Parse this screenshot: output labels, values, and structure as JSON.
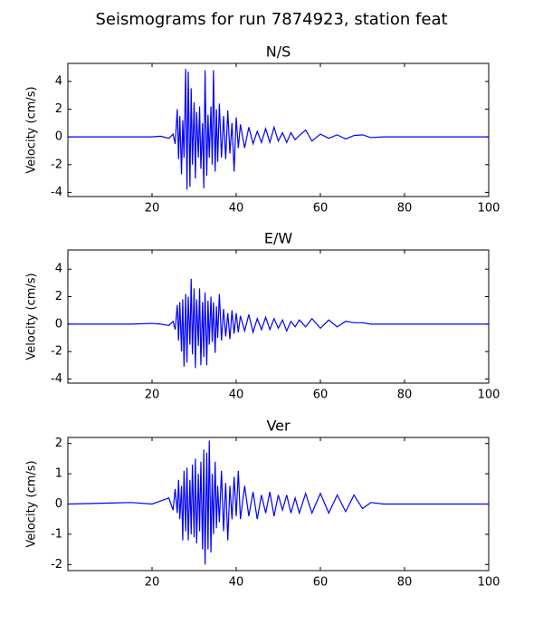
{
  "title": "Seismograms for run 7874923, station feat",
  "chart_data": [
    {
      "type": "line",
      "title": "N/S",
      "ylabel": "Velocity (cm/s)",
      "color": "#0000ff",
      "xlim": [
        0,
        100
      ],
      "xticks": [
        20,
        40,
        60,
        80,
        100
      ],
      "ylim": [
        -4.3,
        5.3
      ],
      "yticks": [
        -4,
        -2,
        0,
        2,
        4
      ],
      "x": [
        0,
        15,
        20,
        22,
        24,
        25,
        25.5,
        26,
        26.3,
        26.6,
        27,
        27.3,
        27.6,
        28,
        28.3,
        28.6,
        29,
        29.3,
        29.6,
        30,
        30.3,
        30.6,
        31,
        31.3,
        31.6,
        32,
        32.3,
        32.6,
        33,
        33.3,
        33.6,
        34,
        34.3,
        34.6,
        35,
        35.3,
        35.6,
        36,
        36.5,
        37,
        37.5,
        38,
        38.5,
        39,
        39.5,
        40,
        40.5,
        41,
        42,
        43,
        44,
        45,
        46,
        47,
        48,
        49,
        50,
        51,
        52,
        53,
        54,
        55,
        56.5,
        58,
        60,
        62,
        64,
        66,
        68,
        70,
        72,
        75,
        100
      ],
      "values": [
        0,
        0,
        0,
        0.05,
        -0.1,
        0.2,
        -0.5,
        2.0,
        -1.6,
        1.5,
        -2.7,
        1.2,
        -1.5,
        4.9,
        -3.8,
        4.7,
        -3.6,
        3.5,
        -2.0,
        2.5,
        -3.0,
        1.8,
        -1.5,
        2.2,
        -2.3,
        1.0,
        -3.7,
        4.8,
        -2.8,
        1.6,
        -1.5,
        2.2,
        -2.0,
        4.8,
        -2.5,
        2.0,
        -1.8,
        2.4,
        -1.5,
        1.5,
        -1.6,
        1.9,
        -1.2,
        1.0,
        -2.5,
        1.4,
        -0.8,
        0.9,
        -0.8,
        0.7,
        -0.5,
        0.4,
        -0.4,
        0.6,
        -0.4,
        0.7,
        -0.3,
        0.3,
        -0.4,
        0.3,
        -0.2,
        0.1,
        0.5,
        -0.3,
        0.2,
        -0.1,
        0.15,
        -0.15,
        0.1,
        0.15,
        -0.05,
        0,
        0
      ]
    },
    {
      "type": "line",
      "title": "E/W",
      "ylabel": "Velocity (cm/s)",
      "color": "#0000ff",
      "xlim": [
        0,
        100
      ],
      "xticks": [
        20,
        40,
        60,
        80,
        100
      ],
      "ylim": [
        -4.3,
        5.4
      ],
      "yticks": [
        -4,
        -2,
        0,
        2,
        4
      ],
      "x": [
        0,
        15,
        20,
        22,
        24,
        25,
        25.5,
        26,
        26.3,
        26.6,
        27,
        27.3,
        27.6,
        28,
        28.3,
        28.6,
        29,
        29.3,
        29.6,
        30,
        30.3,
        30.6,
        31,
        31.3,
        31.6,
        32,
        32.3,
        32.6,
        33,
        33.3,
        33.6,
        34,
        34.3,
        34.6,
        35,
        35.3,
        35.6,
        36,
        36.5,
        37,
        37.5,
        38,
        38.5,
        39,
        39.5,
        40,
        40.5,
        41,
        42,
        43,
        44,
        45,
        46,
        47,
        48,
        49,
        50,
        51,
        52,
        53,
        54,
        55,
        56.5,
        58,
        60,
        62,
        64,
        66,
        68,
        70,
        72,
        75,
        100
      ],
      "values": [
        0,
        0,
        0.05,
        0,
        -0.1,
        0.2,
        -0.4,
        1.4,
        -1.2,
        1.6,
        -2.0,
        1.8,
        -3.1,
        2.2,
        -2.8,
        2.0,
        -1.5,
        3.3,
        -2.2,
        2.6,
        -3.2,
        1.8,
        -1.6,
        2.6,
        -3.0,
        1.6,
        -2.4,
        2.3,
        -3.0,
        1.7,
        -1.5,
        2.0,
        -1.3,
        1.6,
        -2.1,
        1.3,
        -1.0,
        2.2,
        -1.2,
        1.1,
        -0.9,
        0.8,
        -1.1,
        1.0,
        -0.7,
        0.8,
        -0.6,
        0.6,
        -0.5,
        0.7,
        -0.6,
        0.4,
        -0.4,
        0.5,
        -0.4,
        0.4,
        -0.3,
        0.3,
        -0.5,
        0.2,
        -0.2,
        0.3,
        -0.2,
        0.4,
        -0.3,
        0.3,
        -0.2,
        0.2,
        0.1,
        0.1,
        0,
        0,
        0
      ]
    },
    {
      "type": "line",
      "title": "Ver",
      "ylabel": "Velocity (cm/s)",
      "color": "#0000ff",
      "xlim": [
        0,
        100
      ],
      "xticks": [
        20,
        40,
        60,
        80,
        100
      ],
      "ylim": [
        -2.2,
        2.2
      ],
      "yticks": [
        -2,
        -1,
        0,
        1,
        2
      ],
      "x": [
        0,
        15,
        20,
        22,
        24,
        25,
        25.5,
        26,
        26.3,
        26.6,
        27,
        27.3,
        27.6,
        28,
        28.3,
        28.6,
        29,
        29.3,
        29.6,
        30,
        30.3,
        30.6,
        31,
        31.3,
        31.6,
        32,
        32.3,
        32.6,
        33,
        33.3,
        33.6,
        34,
        34.3,
        34.6,
        35,
        35.3,
        35.6,
        36,
        36.5,
        37,
        37.5,
        38,
        38.5,
        39,
        39.5,
        40,
        40.5,
        41,
        42,
        43,
        44,
        45,
        46,
        47,
        48,
        49,
        50,
        51,
        52,
        53,
        54,
        55,
        56.5,
        58,
        60,
        62,
        64,
        66,
        68,
        70,
        72,
        75,
        100
      ],
      "values": [
        0,
        0.05,
        0,
        0.1,
        0.2,
        -0.2,
        0.5,
        -0.3,
        0.8,
        -0.5,
        0.6,
        -1.2,
        1.1,
        -0.9,
        1.2,
        -1.2,
        0.8,
        -1.0,
        1.3,
        -1.1,
        1.5,
        -1.3,
        1.0,
        -0.9,
        1.4,
        -1.5,
        1.8,
        -2.0,
        1.7,
        -1.5,
        2.1,
        -1.6,
        1.0,
        -1.0,
        1.4,
        -0.8,
        0.6,
        -0.6,
        1.1,
        -0.9,
        0.7,
        -1.2,
        0.6,
        -0.5,
        0.9,
        -0.4,
        1.1,
        -0.5,
        0.6,
        -0.4,
        0.4,
        -0.5,
        0.3,
        -0.3,
        0.4,
        -0.4,
        0.3,
        -0.2,
        0.3,
        -0.3,
        0.2,
        -0.3,
        0.35,
        -0.3,
        0.35,
        -0.3,
        0.3,
        -0.25,
        0.3,
        -0.15,
        0.05,
        0,
        0
      ]
    }
  ]
}
